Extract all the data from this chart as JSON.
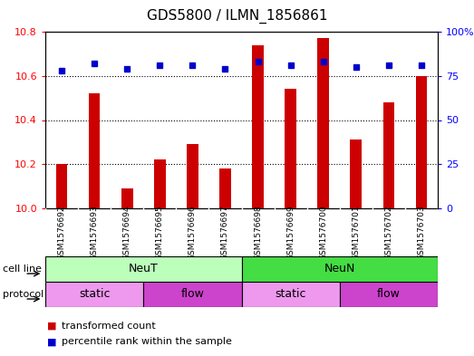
{
  "title": "GDS5800 / ILMN_1856861",
  "samples": [
    "GSM1576692",
    "GSM1576693",
    "GSM1576694",
    "GSM1576695",
    "GSM1576696",
    "GSM1576697",
    "GSM1576698",
    "GSM1576699",
    "GSM1576700",
    "GSM1576701",
    "GSM1576702",
    "GSM1576703"
  ],
  "transformed_count": [
    10.2,
    10.52,
    10.09,
    10.22,
    10.29,
    10.18,
    10.74,
    10.54,
    10.77,
    10.31,
    10.48,
    10.6
  ],
  "percentile_rank": [
    78,
    82,
    79,
    81,
    81,
    79,
    83,
    81,
    83,
    80,
    81,
    81
  ],
  "ylim_left": [
    10.0,
    10.8
  ],
  "ylim_right": [
    0,
    100
  ],
  "yticks_left": [
    10.0,
    10.2,
    10.4,
    10.6,
    10.8
  ],
  "yticks_right": [
    0,
    25,
    50,
    75,
    100
  ],
  "bar_color": "#cc0000",
  "dot_color": "#0000cc",
  "cell_line_labels": [
    "NeuT",
    "NeuN"
  ],
  "cell_line_colors": [
    "#bbffbb",
    "#44dd44"
  ],
  "cell_line_ranges": [
    [
      0,
      6
    ],
    [
      6,
      12
    ]
  ],
  "protocol_labels": [
    "static",
    "flow",
    "static",
    "flow"
  ],
  "protocol_colors": [
    "#ee99ee",
    "#cc44cc",
    "#ee99ee",
    "#cc44cc"
  ],
  "protocol_ranges": [
    [
      0,
      3
    ],
    [
      3,
      6
    ],
    [
      6,
      9
    ],
    [
      9,
      12
    ]
  ],
  "legend_red_label": "transformed count",
  "legend_blue_label": "percentile rank within the sample",
  "cell_line_row_label": "cell line",
  "protocol_row_label": "protocol",
  "sample_bg_color": "#cccccc",
  "title_fontsize": 11
}
